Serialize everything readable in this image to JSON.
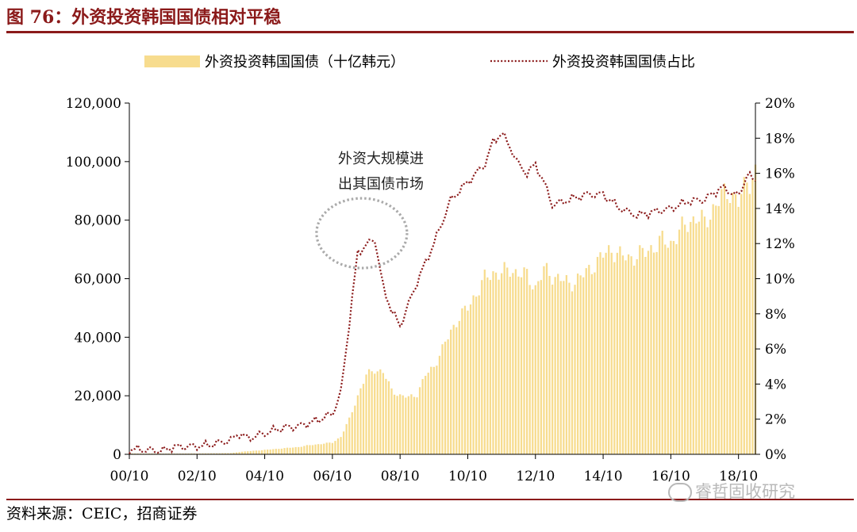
{
  "title": "图 76：外资投资韩国国债相对平稳",
  "source": "资料来源：CEIC，招商证券",
  "watermark": "睿哲固收研究",
  "colors": {
    "bar": "#f7dc8e",
    "line": "#8b1a1a",
    "accent": "#8b1a1a",
    "annotation_circle": "#aaaaaa"
  },
  "chart_data": {
    "type": "bar+line",
    "title": "图 76：外资投资韩国国债相对平稳",
    "legend_position": "top",
    "grid": false,
    "x_tick_labels": [
      "00/10",
      "02/10",
      "04/10",
      "06/10",
      "08/10",
      "10/10",
      "12/10",
      "14/10",
      "16/10",
      "18/10"
    ],
    "x_range": [
      "2000-10",
      "2019-04"
    ],
    "y_left": {
      "ylim": [
        0,
        120000
      ],
      "ticks": [
        "0",
        "20,000",
        "40,000",
        "60,000",
        "80,000",
        "100,000",
        "120,000"
      ]
    },
    "y_right": {
      "ylim": [
        0,
        20
      ],
      "ticks": [
        "0%",
        "2%",
        "4%",
        "6%",
        "8%",
        "10%",
        "12%",
        "14%",
        "16%",
        "18%",
        "20%"
      ]
    },
    "annotation": {
      "text_line1": "外资大规模进",
      "text_line2": "出其国债市场",
      "near": "2007-07"
    },
    "series": [
      {
        "name": "外资投资韩国国债（十亿韩元）",
        "type": "bar",
        "axis": "left",
        "points": [
          [
            "2000-10",
            300
          ],
          [
            "2001-10",
            250
          ],
          [
            "2002-10",
            280
          ],
          [
            "2003-10",
            400
          ],
          [
            "2004-01",
            800
          ],
          [
            "2004-10",
            1500
          ],
          [
            "2005-10",
            2500
          ],
          [
            "2006-01",
            3000
          ],
          [
            "2006-10",
            4000
          ],
          [
            "2007-01",
            6000
          ],
          [
            "2007-04",
            12000
          ],
          [
            "2007-07",
            20000
          ],
          [
            "2007-10",
            27000
          ],
          [
            "2008-01",
            29000
          ],
          [
            "2008-04",
            28000
          ],
          [
            "2008-07",
            22000
          ],
          [
            "2008-10",
            20000
          ],
          [
            "2009-01",
            19500
          ],
          [
            "2009-04",
            20500
          ],
          [
            "2009-07",
            27000
          ],
          [
            "2009-10",
            30000
          ],
          [
            "2010-01",
            36000
          ],
          [
            "2010-04",
            42000
          ],
          [
            "2010-07",
            47000
          ],
          [
            "2010-10",
            50000
          ],
          [
            "2011-01",
            55000
          ],
          [
            "2011-04",
            60000
          ],
          [
            "2011-07",
            62000
          ],
          [
            "2011-10",
            62000
          ],
          [
            "2012-01",
            63000
          ],
          [
            "2012-04",
            62000
          ],
          [
            "2012-07",
            61000
          ],
          [
            "2012-10",
            57000
          ],
          [
            "2013-01",
            63000
          ],
          [
            "2013-04",
            61000
          ],
          [
            "2013-07",
            60000
          ],
          [
            "2013-10",
            58000
          ],
          [
            "2014-01",
            60000
          ],
          [
            "2014-04",
            62000
          ],
          [
            "2014-07",
            65000
          ],
          [
            "2014-10",
            68000
          ],
          [
            "2015-01",
            70000
          ],
          [
            "2015-04",
            68000
          ],
          [
            "2015-07",
            67000
          ],
          [
            "2015-10",
            68000
          ],
          [
            "2016-01",
            69000
          ],
          [
            "2016-04",
            71000
          ],
          [
            "2016-07",
            73000
          ],
          [
            "2016-10",
            72000
          ],
          [
            "2017-01",
            76000
          ],
          [
            "2017-04",
            79000
          ],
          [
            "2017-07",
            81000
          ],
          [
            "2017-10",
            79000
          ],
          [
            "2018-01",
            84000
          ],
          [
            "2018-04",
            88000
          ],
          [
            "2018-07",
            90000
          ],
          [
            "2018-10",
            86000
          ],
          [
            "2019-01",
            93000
          ],
          [
            "2019-04",
            96000
          ]
        ]
      },
      {
        "name": "外资投资韩国国债占比",
        "type": "line",
        "axis": "right",
        "style": "dotted",
        "points": [
          [
            "2000-10",
            0.3
          ],
          [
            "2001-10",
            0.2
          ],
          [
            "2002-01",
            0.4
          ],
          [
            "2003-01",
            0.5
          ],
          [
            "2003-10",
            0.8
          ],
          [
            "2004-01",
            1.2
          ],
          [
            "2004-04",
            0.9
          ],
          [
            "2004-10",
            1.2
          ],
          [
            "2005-04",
            1.5
          ],
          [
            "2005-10",
            1.6
          ],
          [
            "2006-04",
            1.9
          ],
          [
            "2006-10",
            2.3
          ],
          [
            "2007-01",
            3.5
          ],
          [
            "2007-04",
            7.5
          ],
          [
            "2007-07",
            11.5
          ],
          [
            "2008-01",
            12.3
          ],
          [
            "2008-04",
            9.5
          ],
          [
            "2008-07",
            8.2
          ],
          [
            "2008-10",
            7.3
          ],
          [
            "2009-04",
            9.8
          ],
          [
            "2009-10",
            12.0
          ],
          [
            "2010-04",
            14.5
          ],
          [
            "2010-10",
            15.5
          ],
          [
            "2011-04",
            16.5
          ],
          [
            "2011-07",
            17.8
          ],
          [
            "2011-10",
            18.3
          ],
          [
            "2012-01",
            17.5
          ],
          [
            "2012-04",
            16.5
          ],
          [
            "2012-07",
            16.0
          ],
          [
            "2012-10",
            16.5
          ],
          [
            "2013-01",
            15.5
          ],
          [
            "2013-04",
            14.2
          ],
          [
            "2013-10",
            14.5
          ],
          [
            "2014-04",
            14.8
          ],
          [
            "2014-10",
            14.8
          ],
          [
            "2015-04",
            14.0
          ],
          [
            "2015-10",
            13.6
          ],
          [
            "2016-04",
            13.8
          ],
          [
            "2016-10",
            14.0
          ],
          [
            "2017-04",
            14.4
          ],
          [
            "2017-10",
            14.5
          ],
          [
            "2018-04",
            15.2
          ],
          [
            "2018-10",
            14.7
          ],
          [
            "2019-01",
            15.9
          ],
          [
            "2019-04",
            15.6
          ]
        ]
      }
    ]
  }
}
